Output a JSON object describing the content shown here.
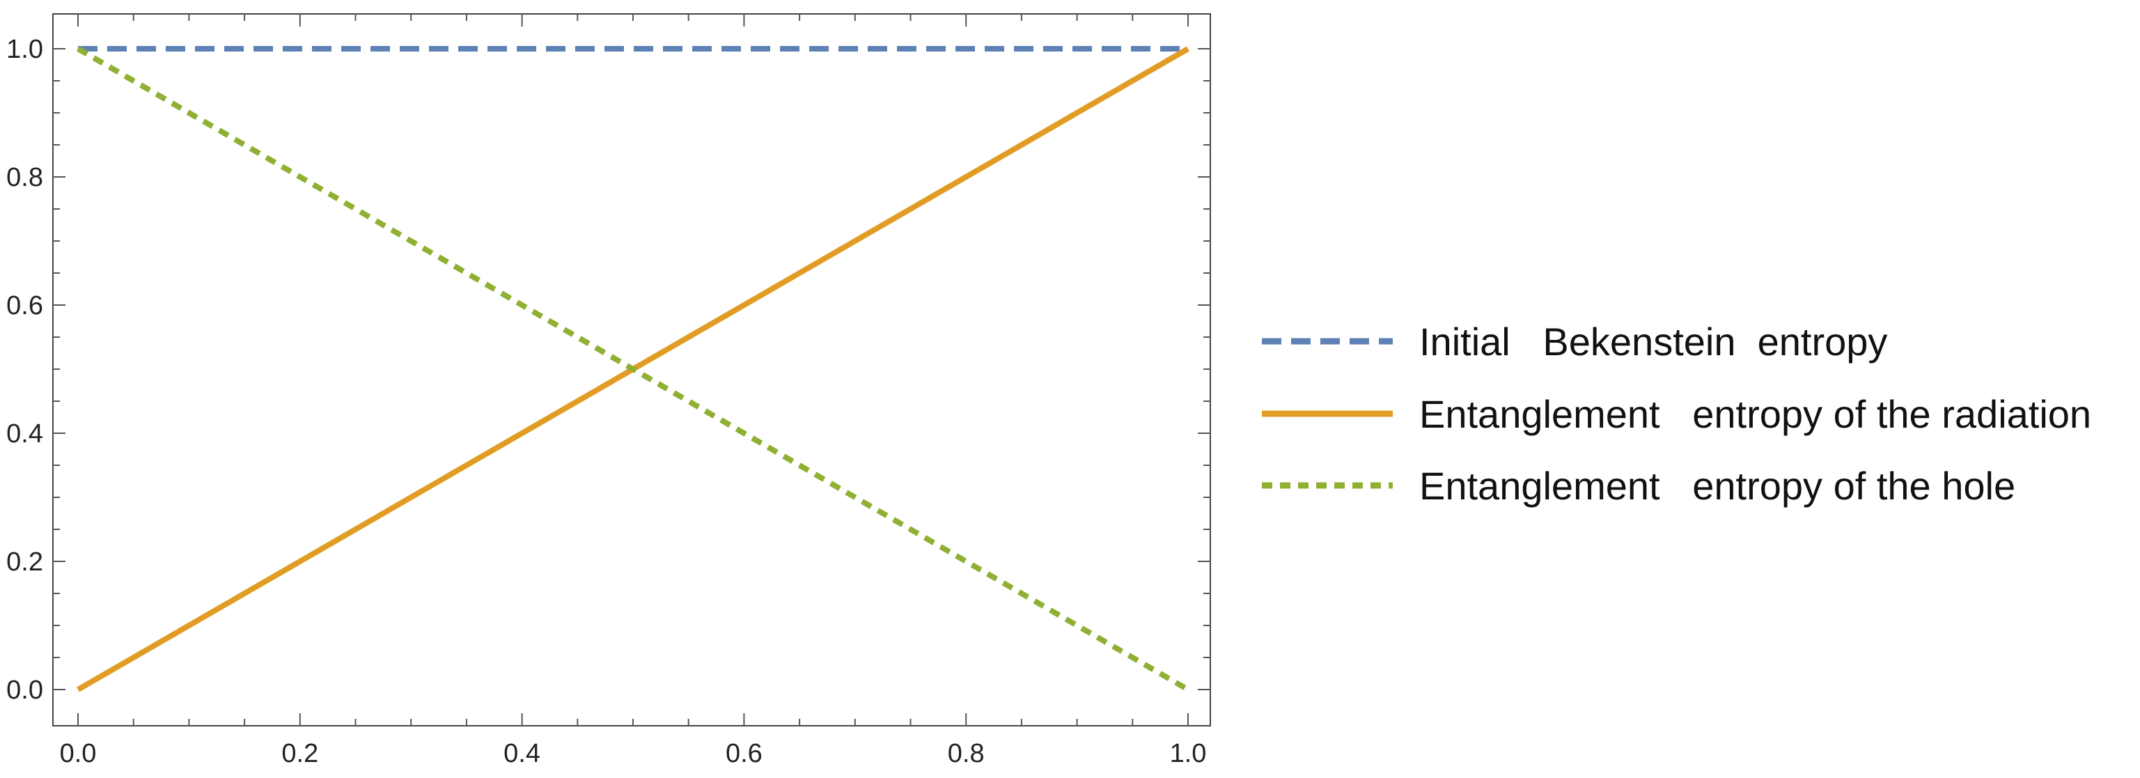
{
  "chart_data": {
    "type": "line",
    "title": "",
    "xlabel": "",
    "ylabel": "",
    "xlim": [
      0,
      1
    ],
    "ylim": [
      0,
      1
    ],
    "x_ticks": [
      "0.0",
      "0.2",
      "0.4",
      "0.6",
      "0.8",
      "1.0"
    ],
    "y_ticks": [
      "0.0",
      "0.2",
      "0.4",
      "0.6",
      "0.8",
      "1.0"
    ],
    "grid": false,
    "legend_position": "right",
    "series": [
      {
        "name": "Initial   Bekenstein  entropy",
        "color": "#5e81b5",
        "style": "dashed",
        "x": [
          0,
          1
        ],
        "y": [
          1,
          1
        ]
      },
      {
        "name": "Entanglement   entropy of the radiation",
        "color": "#e19c24",
        "style": "solid",
        "x": [
          0,
          1
        ],
        "y": [
          0,
          1
        ]
      },
      {
        "name": "Entanglement   entropy of the hole",
        "color": "#8fb032",
        "style": "dotted",
        "x": [
          0,
          1
        ],
        "y": [
          1,
          0
        ]
      }
    ]
  }
}
